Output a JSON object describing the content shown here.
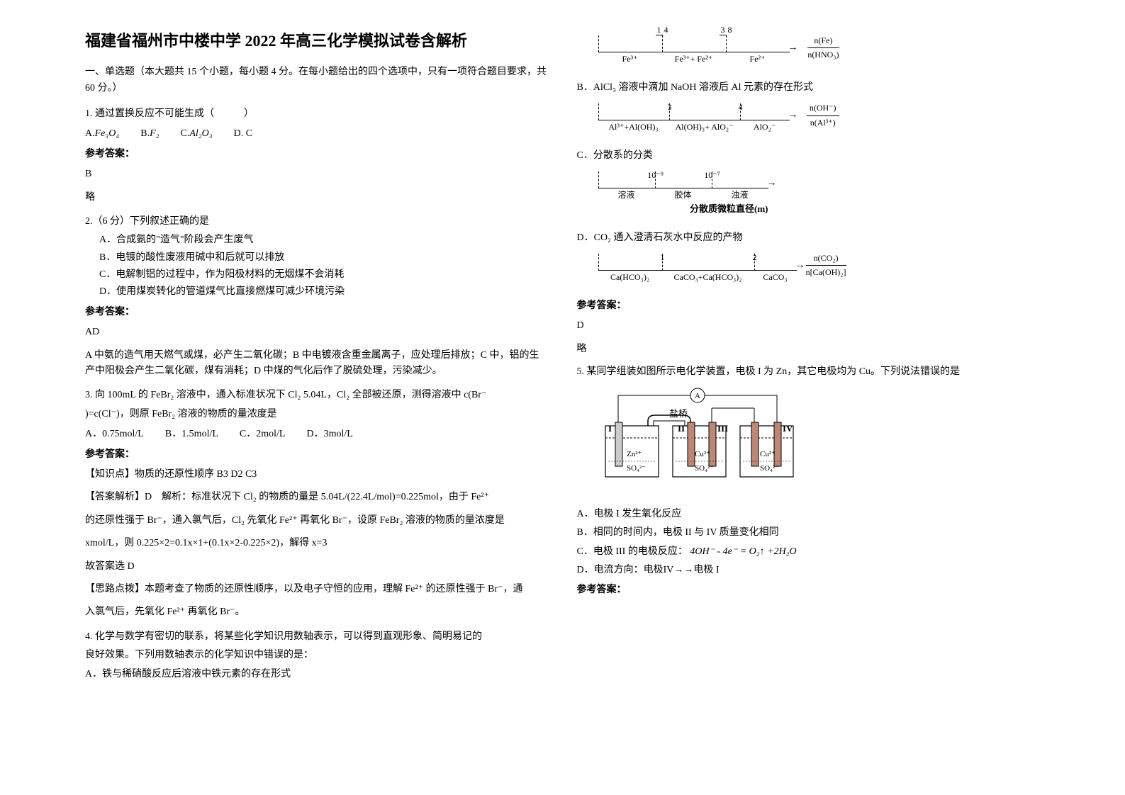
{
  "title": "福建省福州市中楼中学 2022 年高三化学模拟试卷含解析",
  "section_intro": "一、单选题（本大题共 15 个小题，每小题 4 分。在每小题给出的四个选项中，只有一项符合题目要求，共 60 分。）",
  "q1": {
    "text": "1. 通过置换反应不可能生成（　　　）",
    "opt_a_prefix": "A. ",
    "opt_a": "Fe₃O₄",
    "opt_b_prefix": "B. ",
    "opt_b": "F₂",
    "opt_c_prefix": "C. ",
    "opt_c": "Al₂O₃",
    "opt_d": "D. C",
    "answer_label": "参考答案：",
    "answer": "B",
    "explain": "略"
  },
  "q2": {
    "text": "2.（6 分）下列叙述正确的是",
    "a": "A．合成氨的\"造气\"阶段会产生废气",
    "b": "B．电镀的酸性废液用碱中和后就可以排放",
    "c": "C．电解制铝的过程中，作为阳极材料的无烟煤不会消耗",
    "d": "D．使用煤炭转化的管道煤气比直接燃煤可减少环境污染",
    "answer_label": "参考答案：",
    "answer": "AD",
    "explain": "A 中氨的造气用天燃气或煤，必产生二氧化碳；B 中电镀液含重金属离子，应处理后排放；C 中，铝的生产中阳极会产生二氧化碳，煤有消耗；D 中煤的气化后作了脱硫处理，污染减少。"
  },
  "q3": {
    "text1": "3. 向 100mL 的 FeBr₂ 溶液中，通入标准状况下 Cl₂ 5.04L，Cl₂ 全部被还原，测得溶液中 c(Br⁻",
    "text2": ")=c(Cl⁻)，则原 FeBr₂ 溶液的物质的量浓度是",
    "a": "A．0.75mol/L",
    "b": "B．1.5mol/L",
    "c": "C．2mol/L",
    "d": "D．3mol/L",
    "answer_label": "参考答案：",
    "knowledge": "【知识点】物质的还原性顺序  B3  D2  C3",
    "analysis1": "【答案解析】D　解析：标准状况下 Cl₂ 的物质的量是 5.04L/(22.4L/mol)=0.225mol，由于 Fe²⁺",
    "analysis2": "的还原性强于 Br⁻，通入氯气后，Cl₂ 先氧化 Fe²⁺ 再氧化 Br⁻，设原 FeBr₂ 溶液的物质的量浓度是",
    "analysis3": "xmol/L，则 0.225×2=0.1x×1+(0.1x×2-0.225×2)，解得 x=3",
    "analysis4": "故答案选 D",
    "tip1": "【思路点拨】本题考查了物质的还原性顺序，以及电子守恒的应用，理解 Fe²⁺ 的还原性强于 Br⁻，通",
    "tip2": "入氯气后，先氧化 Fe²⁺ 再氧化 Br⁻。"
  },
  "q4": {
    "text1": "4. 化学与数学有密切的联系，将某些化学知识用数轴表示，可以得到直观形象、简明易记的",
    "text2": "良好效果。下列用数轴表示的化学知识中错误的是：",
    "a": "A．铁与稀硝酸反应后溶液中铁元素的存在形式",
    "a_diagram": {
      "top_labels": [
        "1/4",
        "3/8"
      ],
      "bottom_labels": [
        "Fe³⁺",
        "Fe³⁺+ Fe²⁺",
        "Fe²⁺"
      ],
      "ratio_top": "n(Fe)",
      "ratio_bot": "n(HNO₃)",
      "seg_widths": [
        90,
        90,
        90
      ]
    },
    "b": "B．AlCl₃ 溶液中滴加 NaOH 溶液后 Al 元素的存在形式",
    "b_diagram": {
      "top_labels": [
        "3",
        "4"
      ],
      "bottom_labels": [
        "Al³⁺+Al(OH)₃",
        "Al(OH)₃+ AlO₂⁻",
        "AlO₂⁻"
      ],
      "ratio_top": "n(OH⁻)",
      "ratio_bot": "n(Al³⁺)",
      "seg_widths": [
        100,
        100,
        70
      ]
    },
    "c": "C．分散系的分类",
    "c_diagram": {
      "top_labels": [
        "10⁻⁹",
        "10⁻⁷"
      ],
      "bottom_labels": [
        "溶液",
        "胶体",
        "浊液"
      ],
      "caption": "分散质微粒直径(m)",
      "seg_widths": [
        80,
        80,
        80
      ]
    },
    "d": "D．CO₂ 通入澄清石灰水中反应的产物",
    "d_diagram": {
      "top_labels": [
        "1",
        "2"
      ],
      "bottom_labels": [
        "Ca(HCO₃)₂",
        "CaCO₃+Ca(HCO₃)₂",
        "CaCO₃"
      ],
      "ratio_top": "n(CO₂)",
      "ratio_bot": "n[Ca(OH)₂]",
      "seg_widths": [
        90,
        130,
        60
      ]
    },
    "answer_label": "参考答案：",
    "answer": "D",
    "explain": "略"
  },
  "q5": {
    "text": "5. 某同学组装如图所示电化学装置，电极 I 为 Zn，其它电极均为 Cu。下列说法错误的是",
    "a": "A．电极 I 发生氧化反应",
    "b": "B．相同的时间内，电极 II 与 IV 质量变化相同",
    "c_prefix": "C．电极 III 的电极反应：",
    "c_formula": "4OH⁻ - 4e⁻ = O₂↑ +2H₂O",
    "d": "D．电流方向：电极IV→→电极 I",
    "answer_label": "参考答案：",
    "diagram": {
      "salt_bridge": "盐桥",
      "labels": [
        "I",
        "II",
        "III",
        "IV"
      ],
      "electrodes": [
        "Zn²⁺",
        "Cu²⁺",
        "Cu²⁺"
      ],
      "electrolyte": [
        "SO₄²⁻",
        "SO₄²⁻",
        "SO₄²⁻"
      ],
      "ammeter": "A"
    }
  }
}
